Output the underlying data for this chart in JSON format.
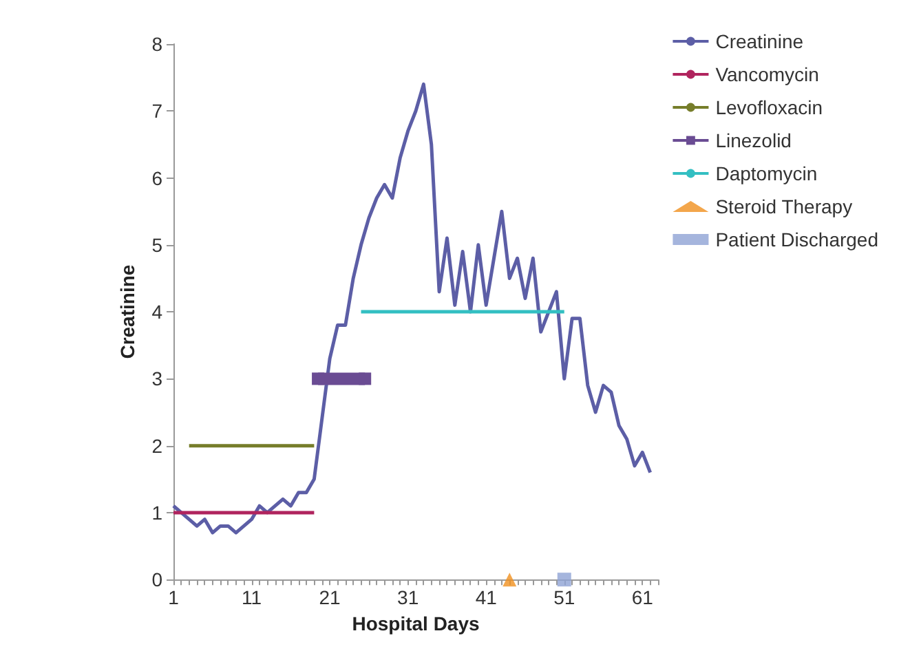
{
  "chart_data": {
    "type": "line",
    "xlabel": "Hospital Days",
    "ylabel": "Creatinine",
    "xlim": [
      1,
      63
    ],
    "ylim": [
      0,
      8
    ],
    "yticks": [
      0,
      1,
      2,
      3,
      4,
      5,
      6,
      7,
      8
    ],
    "xticks": [
      1,
      {
        "value": 2,
        "label": null
      },
      {
        "value": 3,
        "label": null
      },
      {
        "value": 4,
        "label": null
      },
      {
        "value": 5,
        "label": null
      },
      {
        "value": 6,
        "label": null
      },
      {
        "value": 7,
        "label": null
      },
      {
        "value": 8,
        "label": null
      },
      {
        "value": 9,
        "label": null
      },
      {
        "value": 10,
        "label": null
      },
      11,
      {
        "value": 12,
        "label": null
      },
      {
        "value": 13,
        "label": null
      },
      {
        "value": 14,
        "label": null
      },
      {
        "value": 15,
        "label": null
      },
      {
        "value": 16,
        "label": null
      },
      {
        "value": 17,
        "label": null
      },
      {
        "value": 18,
        "label": null
      },
      {
        "value": 19,
        "label": null
      },
      {
        "value": 20,
        "label": null
      },
      21,
      {
        "value": 22,
        "label": null
      },
      {
        "value": 23,
        "label": null
      },
      {
        "value": 24,
        "label": null
      },
      {
        "value": 25,
        "label": null
      },
      {
        "value": 26,
        "label": null
      },
      {
        "value": 27,
        "label": null
      },
      {
        "value": 28,
        "label": null
      },
      {
        "value": 29,
        "label": null
      },
      {
        "value": 30,
        "label": null
      },
      31,
      {
        "value": 32,
        "label": null
      },
      {
        "value": 33,
        "label": null
      },
      {
        "value": 34,
        "label": null
      },
      {
        "value": 35,
        "label": null
      },
      {
        "value": 36,
        "label": null
      },
      {
        "value": 37,
        "label": null
      },
      {
        "value": 38,
        "label": null
      },
      {
        "value": 39,
        "label": null
      },
      {
        "value": 40,
        "label": null
      },
      41,
      {
        "value": 42,
        "label": null
      },
      {
        "value": 43,
        "label": null
      },
      {
        "value": 44,
        "label": null
      },
      {
        "value": 45,
        "label": null
      },
      {
        "value": 46,
        "label": null
      },
      {
        "value": 47,
        "label": null
      },
      {
        "value": 48,
        "label": null
      },
      {
        "value": 49,
        "label": null
      },
      {
        "value": 50,
        "label": null
      },
      51,
      {
        "value": 52,
        "label": null
      },
      {
        "value": 53,
        "label": null
      },
      {
        "value": 54,
        "label": null
      },
      {
        "value": 55,
        "label": null
      },
      {
        "value": 56,
        "label": null
      },
      {
        "value": 57,
        "label": null
      },
      {
        "value": 58,
        "label": null
      },
      {
        "value": 59,
        "label": null
      },
      {
        "value": 60,
        "label": null
      },
      61,
      {
        "value": 62,
        "label": null
      },
      {
        "value": 63,
        "label": null
      }
    ],
    "legend": "right",
    "marker": "none",
    "line_style": "solid",
    "series": [
      {
        "name": "Creatinine",
        "color": "#5c5ea6",
        "x": [
          1,
          2,
          3,
          4,
          5,
          6,
          7,
          8,
          9,
          10,
          11,
          12,
          13,
          14,
          15,
          16,
          17,
          18,
          19,
          20,
          21,
          22,
          23,
          24,
          25,
          26,
          27,
          28,
          29,
          30,
          31,
          32,
          33,
          34,
          35,
          36,
          37,
          38,
          39,
          40,
          41,
          42,
          43,
          44,
          45,
          46,
          47,
          48,
          49,
          50,
          51,
          52,
          53,
          54,
          55,
          56,
          57,
          58,
          59,
          60,
          61,
          62
        ],
        "values": [
          1.1,
          1.0,
          0.9,
          0.8,
          0.9,
          0.7,
          0.8,
          0.8,
          0.7,
          0.8,
          0.9,
          1.1,
          1.0,
          1.1,
          1.2,
          1.1,
          1.3,
          1.3,
          1.5,
          2.4,
          3.3,
          3.8,
          3.8,
          4.5,
          5.0,
          5.4,
          5.7,
          5.9,
          5.7,
          6.3,
          6.7,
          7.0,
          7.4,
          6.5,
          4.3,
          5.1,
          4.1,
          4.9,
          4.0,
          5.0,
          4.1,
          4.8,
          5.5,
          4.5,
          4.8,
          4.2,
          4.8,
          3.7,
          4.0,
          4.3,
          3.0,
          3.9,
          3.9,
          2.9,
          2.5,
          2.9,
          2.8,
          2.3,
          2.1,
          1.7,
          1.9,
          1.6
        ]
      },
      {
        "name": "Vancomycin",
        "color": "#b0245e",
        "x": [
          1,
          19
        ],
        "values": [
          1,
          1
        ]
      },
      {
        "name": "Levofloxacin",
        "color": "#767d2a",
        "x": [
          3,
          19
        ],
        "values": [
          2,
          2
        ]
      },
      {
        "name": "Linezolid",
        "color": "#6a4c93",
        "marker": "square",
        "x": [
          19.5,
          25.5
        ],
        "values": [
          3,
          3
        ]
      },
      {
        "name": "Daptomycin",
        "color": "#33bfc2",
        "x": [
          25,
          51
        ],
        "values": [
          4,
          4
        ]
      },
      {
        "name": "Steroid Therapy",
        "type": "scatter",
        "marker": "triangle",
        "color": "#f0901e",
        "x": [
          44
        ],
        "values": [
          0
        ]
      },
      {
        "name": "Patient Discharged",
        "type": "scatter",
        "marker": "square",
        "color": "#8fa2d4",
        "x": [
          51
        ],
        "values": [
          0
        ]
      }
    ]
  }
}
